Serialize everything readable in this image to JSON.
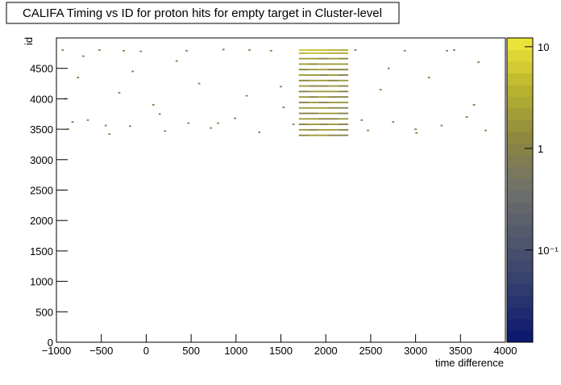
{
  "chart_data": {
    "type": "heatmap",
    "title": "CALIFA Timing vs ID for proton hits for empty target in Cluster-level",
    "xlabel": "time difference",
    "ylabel": "id",
    "xlim": [
      -1000,
      4000
    ],
    "ylim": [
      0,
      5000
    ],
    "xticks": [
      {
        "value": -1000,
        "label": "−1000"
      },
      {
        "value": -500,
        "label": "−500"
      },
      0,
      500,
      1000,
      1500,
      2000,
      2500,
      3000,
      3500,
      4000
    ],
    "yticks": [
      0,
      500,
      1000,
      1500,
      2000,
      2500,
      3000,
      3500,
      4000,
      4500
    ],
    "zlim": [
      0.0124,
      12.2
    ],
    "zlog": true,
    "zticks": [
      {
        "value": 0.1,
        "label": "10⁻¹"
      },
      1,
      10
    ],
    "palette": [
      "#0a1670",
      "#2e3a6e",
      "#4f566c",
      "#6f6f6c",
      "#8c873f",
      "#b9b32e",
      "#f2e93a"
    ],
    "series": [
      {
        "xbin": 25,
        "ybin": 25,
        "x": [
          -930,
          -870,
          -760,
          -650,
          -520,
          -410,
          -300,
          -180,
          -60,
          80,
          210,
          340,
          470,
          590,
          720,
          860,
          990,
          1120,
          1260,
          1390,
          1530,
          1640,
          2330,
          2470,
          2610,
          2750,
          2880,
          3010,
          3150,
          3290,
          3430,
          3570,
          3700,
          3780,
          -900,
          -700,
          -450,
          -150,
          150,
          450,
          800,
          1150,
          1500,
          2400,
          2700,
          3000,
          3350,
          3650,
          -820,
          -250
        ],
        "y": [
          4800,
          3500,
          4350,
          3650,
          4800,
          3420,
          4100,
          3550,
          4780,
          3900,
          3470,
          4620,
          3600,
          4250,
          3520,
          4810,
          3680,
          4050,
          3450,
          4790,
          3860,
          3580,
          4800,
          3480,
          4150,
          3620,
          4790,
          3440,
          4350,
          3560,
          4800,
          3700,
          4600,
          3480,
          4000,
          4700,
          3560,
          4450,
          3750,
          4790,
          3600,
          4800,
          4200,
          3650,
          4500,
          3500,
          4790,
          3900,
          3620,
          4790
        ],
        "values": [
          1,
          1,
          1,
          1,
          1,
          1,
          1,
          1,
          1,
          1,
          1,
          1,
          1,
          1,
          1,
          1,
          1,
          1,
          1,
          1,
          1,
          1,
          1,
          1,
          1,
          1,
          1,
          1,
          1,
          1,
          1,
          1,
          1,
          1,
          1,
          1,
          1,
          1,
          1,
          1,
          1,
          1,
          1,
          1,
          1,
          1,
          1,
          1,
          1,
          1
        ]
      },
      {
        "xbin": 110,
        "ybin": 25,
        "x": [
          1755,
          1865,
          1975,
          2085,
          2195,
          1755,
          1865,
          1975,
          2085,
          2195,
          1755,
          1865,
          1975,
          2085,
          2195,
          1755,
          1865,
          1975,
          2085,
          2195,
          1755,
          1865,
          1975,
          2085,
          2195,
          1755,
          1865,
          1975,
          2085,
          2195,
          1755,
          1865,
          1975,
          2085,
          2195,
          1755,
          1865,
          1975,
          2085,
          2195,
          1755,
          1865,
          1975,
          2085,
          2195,
          1755,
          1865,
          1975,
          2085,
          2195,
          1755,
          1865,
          1975,
          2085,
          2195,
          1755,
          1865,
          1975,
          2085,
          2195,
          1755,
          1865,
          1975,
          2085,
          2195,
          1755,
          1865,
          1975,
          2085,
          2195,
          1755,
          1865,
          1975,
          2085,
          2195,
          1755,
          1865,
          1975,
          2085,
          2195,
          1755,
          1865,
          1975,
          2085,
          2195
        ],
        "y": [
          3400,
          3400,
          3400,
          3400,
          3400,
          3490,
          3490,
          3490,
          3490,
          3490,
          3580,
          3580,
          3580,
          3580,
          3580,
          3670,
          3670,
          3670,
          3670,
          3670,
          3760,
          3760,
          3760,
          3760,
          3760,
          3850,
          3850,
          3850,
          3850,
          3850,
          3940,
          3940,
          3940,
          3940,
          3940,
          4030,
          4030,
          4030,
          4030,
          4030,
          4120,
          4120,
          4120,
          4120,
          4120,
          4210,
          4210,
          4210,
          4210,
          4210,
          4300,
          4300,
          4300,
          4300,
          4300,
          4390,
          4390,
          4390,
          4390,
          4390,
          4480,
          4480,
          4480,
          4480,
          4480,
          4570,
          4570,
          4570,
          4570,
          4570,
          4660,
          4660,
          4660,
          4660,
          4660,
          4750,
          4750,
          4750,
          4750,
          4750,
          4800,
          4800,
          4800,
          4800,
          4800
        ],
        "values": [
          1,
          2,
          2,
          1,
          1,
          2,
          1,
          2,
          2,
          1,
          1,
          2,
          1,
          2,
          1,
          2,
          2,
          1,
          1,
          2,
          1,
          1,
          2,
          2,
          1,
          2,
          2,
          2,
          1,
          1,
          1,
          2,
          1,
          2,
          2,
          2,
          1,
          2,
          1,
          1,
          1,
          2,
          2,
          2,
          1,
          2,
          1,
          1,
          2,
          1,
          1,
          2,
          2,
          1,
          2,
          2,
          2,
          1,
          2,
          1,
          1,
          2,
          2,
          1,
          1,
          2,
          1,
          2,
          2,
          2,
          2,
          2,
          1,
          2,
          1,
          4,
          5,
          4,
          3,
          3,
          6,
          5,
          5,
          4,
          3
        ]
      }
    ]
  }
}
